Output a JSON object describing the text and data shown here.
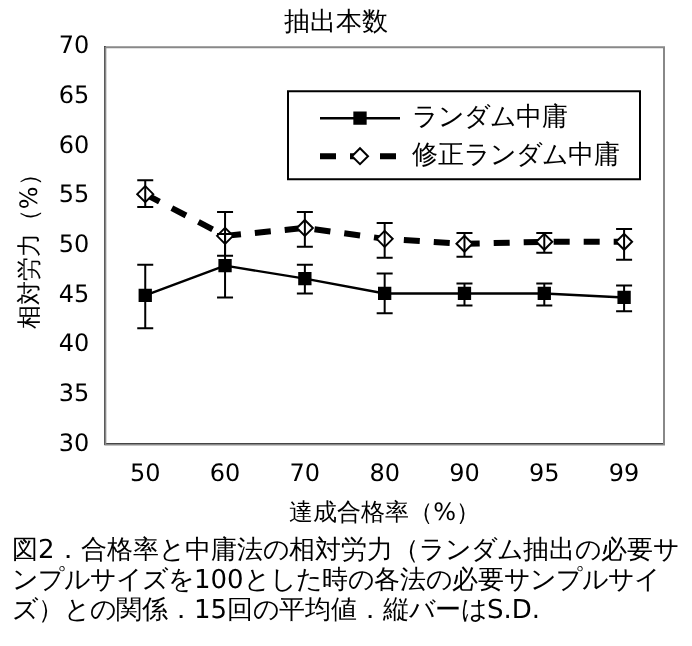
{
  "chart_data": {
    "type": "line",
    "title": "抽出本数",
    "xlabel": "達成合格率（%）",
    "ylabel": "相対労力（%）",
    "annotations": [
      "図2．合格率と中庸法の相対労力（ランダム抽出の必要サンプルサイズを100とした時の各法の必要サンプルサイズ）との関係．15回の平均値．縦バーはS.D."
    ],
    "categories": [
      "50",
      "60",
      "70",
      "80",
      "90",
      "95",
      "99"
    ],
    "series": [
      {
        "name": "ランダム中庸",
        "color": "#000000",
        "marker": "square",
        "line_style": "solid",
        "values": [
          45.0,
          48.0,
          46.7,
          45.2,
          45.2,
          45.2,
          44.8
        ],
        "errors": [
          [
            41.7,
            48.1
          ],
          [
            44.8,
            51.2
          ],
          [
            45.2,
            48.1
          ],
          [
            43.2,
            47.2
          ],
          [
            44.0,
            46.2
          ],
          [
            44.0,
            46.2
          ],
          [
            43.4,
            46.0
          ]
        ]
      },
      {
        "name": "修正ランダム中庸",
        "color": "#000000",
        "marker": "diamond",
        "line_style": "dashed",
        "values": [
          55.2,
          51.0,
          51.8,
          50.7,
          50.2,
          50.4,
          50.4
        ],
        "errors": [
          [
            53.9,
            56.6
          ],
          [
            49.0,
            53.4
          ],
          [
            49.9,
            53.4
          ],
          [
            48.8,
            52.3
          ],
          [
            48.9,
            51.3
          ],
          [
            49.3,
            51.3
          ],
          [
            48.6,
            51.7
          ]
        ]
      }
    ],
    "ylim": [
      30,
      70
    ],
    "yticks": [
      30,
      35,
      40,
      45,
      50,
      55,
      60,
      65,
      70
    ],
    "grid": false,
    "legend": "top right"
  }
}
